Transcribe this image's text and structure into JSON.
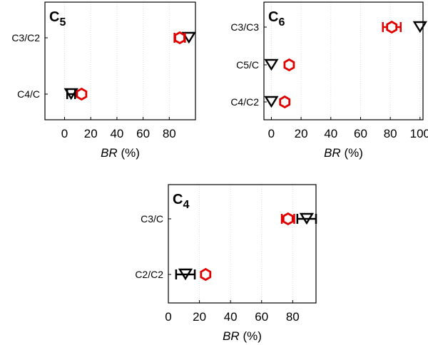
{
  "chart_data": [
    {
      "type": "scatter",
      "panel_label": "C",
      "panel_sub": "5",
      "xlabel_italic": "BR",
      "xlabel_unit": " (%)",
      "xlim": [
        -15,
        100
      ],
      "xticks": [
        0,
        20,
        40,
        60,
        80
      ],
      "categories": [
        "C3/C2",
        "C4/C"
      ],
      "grid": true,
      "series": [
        {
          "marker": "hexagon",
          "color": "#e00000",
          "values": [
            88,
            13
          ],
          "errors": [
            4,
            0
          ]
        },
        {
          "marker": "triangle-down",
          "color": "#000000",
          "values": [
            95,
            5
          ],
          "errors": [
            0,
            3
          ]
        }
      ]
    },
    {
      "type": "scatter",
      "panel_label": "C",
      "panel_sub": "6",
      "xlabel_italic": "BR",
      "xlabel_unit": " (%)",
      "xlim": [
        -5,
        102
      ],
      "xticks": [
        0,
        20,
        40,
        60,
        80,
        100
      ],
      "categories": [
        "C3/C3",
        "C5/C",
        "C4/C2"
      ],
      "grid": true,
      "series": [
        {
          "marker": "hexagon",
          "color": "#e00000",
          "values": [
            81,
            12,
            9
          ],
          "errors": [
            6,
            0,
            0
          ]
        },
        {
          "marker": "triangle-down",
          "color": "#000000",
          "values": [
            100,
            0,
            0
          ],
          "errors": [
            0,
            0,
            0
          ]
        }
      ]
    },
    {
      "type": "scatter",
      "panel_label": "C",
      "panel_sub": "4",
      "xlabel_italic": "BR",
      "xlabel_unit": " (%)",
      "xlim": [
        0,
        95
      ],
      "xticks": [
        0,
        20,
        40,
        60,
        80
      ],
      "categories": [
        "C3/C",
        "C2/C2"
      ],
      "grid": true,
      "series": [
        {
          "marker": "hexagon",
          "color": "#e00000",
          "values": [
            77,
            24
          ],
          "errors": [
            4,
            0
          ]
        },
        {
          "marker": "triangle-down",
          "color": "#000000",
          "values": [
            89,
            11
          ],
          "errors": [
            6,
            6
          ]
        }
      ]
    }
  ]
}
